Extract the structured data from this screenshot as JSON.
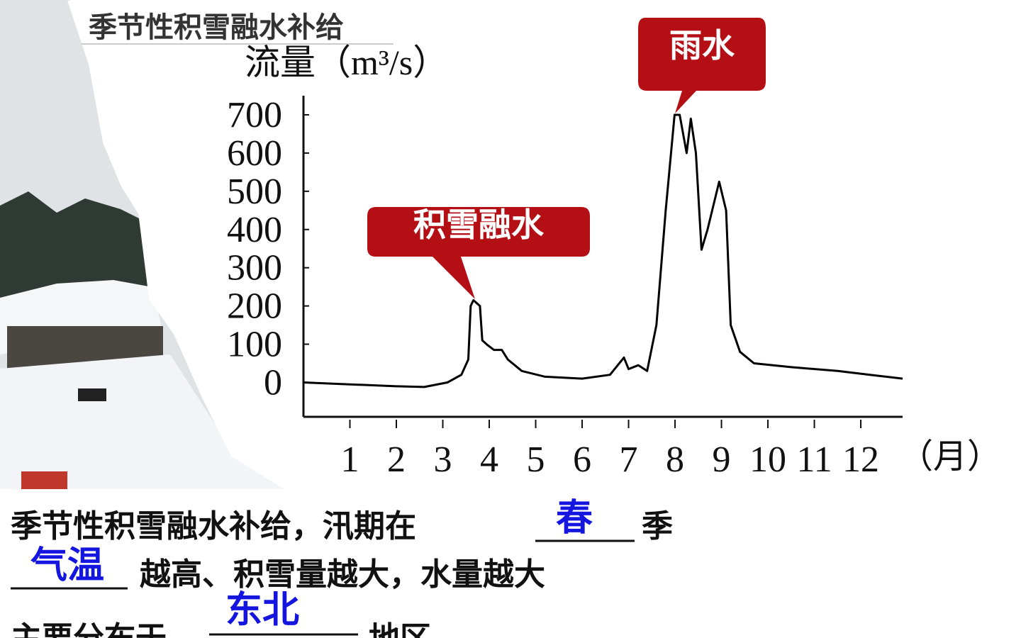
{
  "chart_data": {
    "type": "line",
    "title": "季节性积雪融水补给",
    "y_label": "流量（m³/s）",
    "x_label": "（月）",
    "x": [
      0,
      1,
      2,
      2.6,
      3.1,
      3.4,
      3.55,
      3.6,
      3.66,
      3.8,
      3.85,
      3.96,
      4.1,
      4.27,
      4.4,
      4.7,
      5.2,
      6.0,
      6.6,
      6.9,
      7.0,
      7.21,
      7.4,
      7.6,
      7.8,
      7.99,
      8.1,
      8.25,
      8.34,
      8.45,
      8.57,
      8.7,
      8.95,
      9.1,
      9.2,
      9.4,
      9.7,
      10.5,
      11.5,
      12.2,
      12.9
    ],
    "values": [
      0,
      -5,
      -10,
      -12,
      0,
      20,
      60,
      200,
      215,
      200,
      110,
      98,
      85,
      85,
      60,
      30,
      15,
      10,
      20,
      65,
      35,
      45,
      30,
      150,
      450,
      700,
      700,
      600,
      690,
      600,
      347,
      400,
      525,
      450,
      150,
      80,
      50,
      40,
      30,
      20,
      10
    ],
    "color": "#000000",
    "xlim": [
      0,
      12.9
    ],
    "xticks": [
      1,
      2,
      3,
      4,
      5,
      6,
      7,
      8,
      9,
      10,
      11,
      12
    ],
    "ylim": [
      -90,
      750
    ],
    "yticks": [
      0,
      100,
      200,
      300,
      400,
      500,
      600,
      700
    ],
    "annotations": [
      {
        "text": "积雪融水",
        "x": 3.66,
        "y": 215
      },
      {
        "text": "雨水",
        "x": 7.99,
        "y": 700
      }
    ]
  },
  "body": {
    "lines": [
      {
        "before": "季节性积雪融水补给，汛期在",
        "answer": "春",
        "after": "季"
      },
      {
        "before": "",
        "answer": "气温",
        "after": "越高、积雪量越大，水量越大"
      },
      {
        "before": "主要分布于",
        "answer": "东北",
        "after": "地区"
      }
    ]
  }
}
